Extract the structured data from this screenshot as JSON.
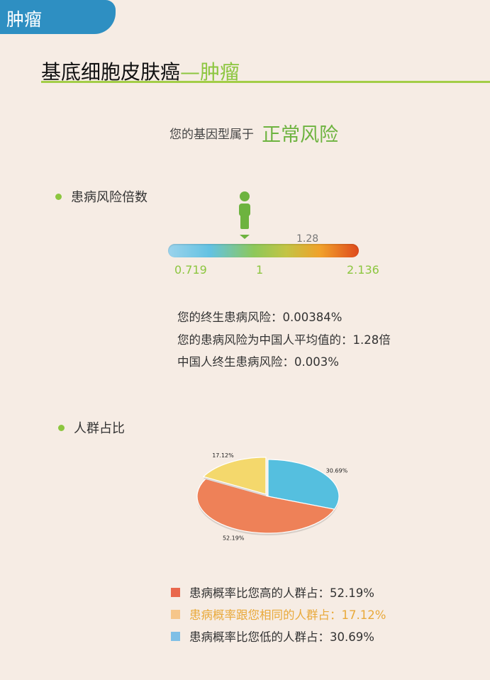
{
  "tab": {
    "label": "肿瘤"
  },
  "heading": {
    "main": "基底细胞皮肤癌",
    "accent": "—肿瘤"
  },
  "genotype": {
    "label": "您的基因型属于",
    "value": "正常风险",
    "value_color": "#6db33f"
  },
  "risk_section": {
    "title": "患病风险倍数",
    "marker_value": "1.28",
    "marker_fraction": 0.4,
    "scale": {
      "min": "0.719",
      "mid": "1",
      "max": "2.136"
    }
  },
  "info": {
    "lifetime_risk": "您的终生患病风险：0.00384%",
    "relative_risk": "您的患病风险为中国人平均值的：1.28倍",
    "population_risk": "中国人终生患病风险：0.003%"
  },
  "population_section": {
    "title": "人群占比"
  },
  "chart_data": {
    "type": "pie",
    "slices": [
      {
        "label": "52.19%",
        "value": 52.19,
        "color": "#ee8158"
      },
      {
        "label": "17.12%",
        "value": 17.12,
        "color": "#f4d86c"
      },
      {
        "label": "30.69%",
        "value": 30.69,
        "color": "#55bfdf"
      }
    ]
  },
  "legend": [
    {
      "text": "患病概率比您高的人群占：52.19%",
      "swatch": "#e9674c",
      "text_color": "#333333"
    },
    {
      "text": "患病概率跟您相同的人群占：17.12%",
      "swatch": "#f6c68a",
      "text_color": "#e9a93a"
    },
    {
      "text": "患病概率比您低的人群占：30.69%",
      "swatch": "#7fbfe6",
      "text_color": "#333333"
    }
  ]
}
